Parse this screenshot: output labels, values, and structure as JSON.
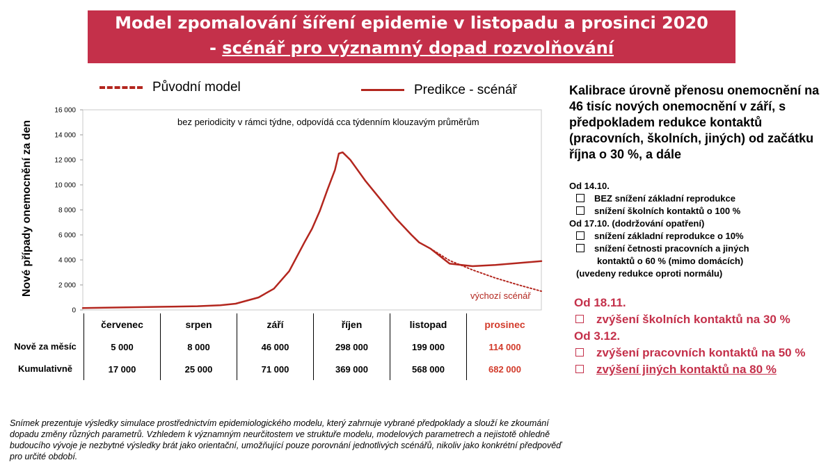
{
  "title": {
    "line1": "Model zpomalování šíření epidemie v listopadu a prosinci 2020",
    "line2_prefix": "- ",
    "line2_underlined": "scénář pro významný dopad rozvolňování"
  },
  "legend": {
    "original": "Původní model",
    "prediction": "Predikce - scénář"
  },
  "colors": {
    "banner": "#c4304a",
    "series": "#b3261e",
    "highlight": "#d23b2b"
  },
  "chart_data": {
    "type": "line",
    "title": "Model zpomalování šíření epidemie v listopadu a prosinci 2020 - scénář pro významný dopad rozvolňování",
    "ylabel": "Nové případy onemocnění za den",
    "xlabel": "",
    "ylim": [
      0,
      16000
    ],
    "yticks": [
      0,
      2000,
      4000,
      6000,
      8000,
      10000,
      12000,
      14000,
      16000
    ],
    "ytick_labels": [
      "0",
      "2 000",
      "4 000",
      "6 000",
      "8 000",
      "10 000",
      "12 000",
      "14 000",
      "16 000"
    ],
    "x_unit": "months from 1 July 2020",
    "xlim": [
      0,
      6
    ],
    "categories": [
      "červenec",
      "srpen",
      "září",
      "říjen",
      "listopad",
      "prosinec"
    ],
    "grid": false,
    "legend_position": "top",
    "annotation": "bez periodicity v rámci týdne, odpovídá cca týdenním klouzavým průměrům",
    "baseline_label": "výchozí scénář",
    "series": [
      {
        "name": "Predikce - scénář",
        "style": "solid",
        "x": [
          0,
          0.5,
          1.0,
          1.5,
          1.8,
          2.0,
          2.3,
          2.5,
          2.7,
          2.9,
          3.0,
          3.1,
          3.2,
          3.3,
          3.35,
          3.4,
          3.5,
          3.7,
          3.9,
          4.1,
          4.3,
          4.4,
          4.55,
          4.8,
          5.1,
          5.4,
          5.7,
          6.0
        ],
        "y": [
          150,
          200,
          250,
          300,
          380,
          500,
          1000,
          1700,
          3100,
          5400,
          6500,
          7900,
          9600,
          11200,
          12500,
          12600,
          12000,
          10300,
          8800,
          7300,
          6000,
          5400,
          4900,
          3700,
          3500,
          3600,
          3750,
          3900
        ]
      },
      {
        "name": "Původní model",
        "style": "dashed",
        "x": [
          4.55,
          4.8,
          5.1,
          5.4,
          5.7,
          6.0
        ],
        "y": [
          4900,
          3950,
          3200,
          2550,
          2000,
          1500
        ]
      }
    ]
  },
  "table": {
    "row_labels": {
      "new": "Nově za měsíc",
      "cumulative": "Kumulativně"
    },
    "months": [
      {
        "name": "červenec",
        "new": "5 000",
        "cum": "17 000",
        "red": false
      },
      {
        "name": "srpen",
        "new": "8 000",
        "cum": "25 000",
        "red": false
      },
      {
        "name": "září",
        "new": "46 000",
        "cum": "71 000",
        "red": false
      },
      {
        "name": "říjen",
        "new": "298 000",
        "cum": "369 000",
        "red": false
      },
      {
        "name": "listopad",
        "new": "199 000",
        "cum": "568 000",
        "red": false
      },
      {
        "name": "prosinec",
        "new": "114 000",
        "cum": "682 000",
        "red": true
      }
    ]
  },
  "right_panel": {
    "heading": "Kalibrace úrovně přenosu onemocnění na 46 tisíc nových onemocnění v září, s předpokladem redukce kontaktů (pracovních, školních, jiných) od začátku října o 30 %,  a dále",
    "date1": "Od 14.10.",
    "date1_items": [
      "BEZ snížení základní reprodukce",
      "snížení školních kontaktů o 100 %"
    ],
    "date2": "Od 17.10. (dodržování opatření)",
    "date2_items": [
      "snížení základní reprodukce o 10%",
      "snížení četnosti pracovních a jiných"
    ],
    "date2_cont": "kontaktů o 60 % (mimo domácích)",
    "note": "(uvedeny redukce oproti normálu)",
    "red_date1": "Od 18.11.",
    "red_item1": "zvýšení školních kontaktů na 30 %",
    "red_date2": "Od 3.12.",
    "red_item2": "zvýšení pracovních kontaktů na 50 %",
    "red_item3": "zvýšení jiných kontaktů na 80 %"
  },
  "footnote": "Snímek prezentuje výsledky simulace prostřednictvím epidemiologického modelu, který zahrnuje vybrané předpoklady a slouží ke zkoumání dopadu změny různých parametrů. Vzhledem k významným neurčitostem ve struktuře modelu, modelových parametrech a nejistotě ohledně budoucího vývoje je nezbytné výsledky brát jako orientační, umožňující pouze porovnání jednotlivých scénářů, nikoliv jako konkrétní předpověď pro určité období."
}
